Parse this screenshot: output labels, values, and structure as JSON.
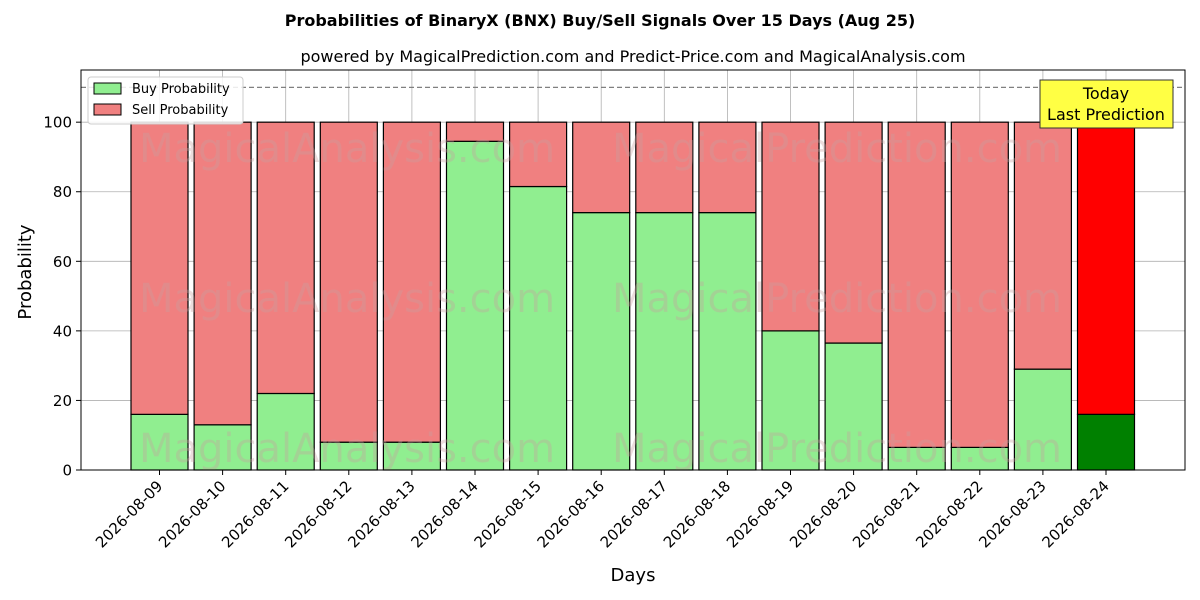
{
  "chart_data": {
    "type": "bar",
    "stacked": true,
    "title": "Probabilities of BinaryX (BNX) Buy/Sell Signals Over 15 Days (Aug 25)",
    "subtitle": "powered by MagicalPrediction.com and Predict-Price.com and MagicalAnalysis.com",
    "xlabel": "Days",
    "ylabel": "Probability",
    "ylim": [
      0,
      115
    ],
    "yticks": [
      0,
      20,
      40,
      60,
      80,
      100
    ],
    "grid": true,
    "legend_position": "top-left",
    "reference_line": 110,
    "categories": [
      "2026-08-09",
      "2026-08-10",
      "2026-08-11",
      "2026-08-12",
      "2026-08-13",
      "2026-08-14",
      "2026-08-15",
      "2026-08-16",
      "2026-08-17",
      "2026-08-18",
      "2026-08-19",
      "2026-08-20",
      "2026-08-21",
      "2026-08-22",
      "2026-08-23",
      "2026-08-24"
    ],
    "series": [
      {
        "name": "Buy Probability",
        "color": "#90ee90",
        "highlight_color": "#008000",
        "values": [
          16,
          13,
          22,
          8,
          8,
          94.5,
          81.5,
          74,
          74,
          74,
          40,
          36.5,
          6.5,
          6.5,
          29,
          16
        ]
      },
      {
        "name": "Sell Probability",
        "color": "#f08080",
        "highlight_color": "#ff0000",
        "values": [
          84,
          87,
          78,
          92,
          92,
          5.5,
          18.5,
          26,
          26,
          26,
          60,
          63.5,
          93.5,
          93.5,
          71,
          84
        ]
      }
    ],
    "highlight_index": 15,
    "annotation": {
      "lines": [
        "Today",
        "Last Prediction"
      ],
      "background": "#ffff44"
    },
    "watermarks": [
      "MagicalAnalysis.com",
      "MagicalPrediction.com"
    ]
  }
}
